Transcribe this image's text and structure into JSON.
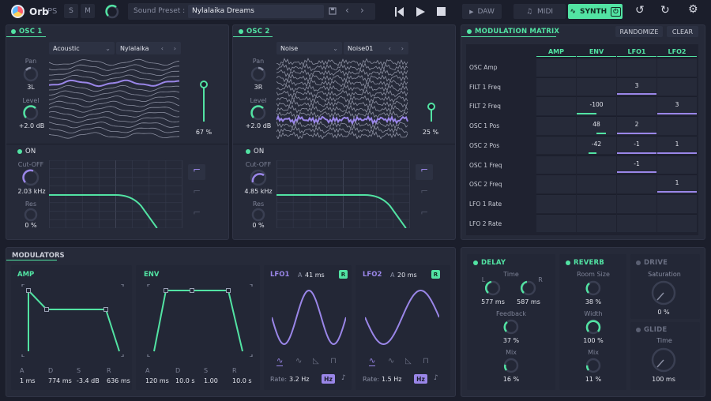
{
  "app": {
    "name": "Orb",
    "suffix": "PS",
    "s_label": "S",
    "m_label": "M",
    "preset_label": "Sound Preset :",
    "preset_name": "Nylalaika Dreams",
    "daw": "DAW",
    "midi": "MIDI",
    "synth": "SYNTH"
  },
  "osc1": {
    "title": "OSC 1",
    "pan_label": "Pan",
    "pan_value": "3L",
    "level_label": "Level",
    "level_value": "+2.0 dB",
    "type": "Acoustic",
    "wave": "Nylalaika",
    "volume": "67 %",
    "filter_on": "ON",
    "cutoff_label": "Cut-OFF",
    "cutoff_value": "2.03 kHz",
    "res_label": "Res",
    "res_value": "0 %"
  },
  "osc2": {
    "title": "OSC 2",
    "pan_label": "Pan",
    "pan_value": "3R",
    "level_label": "Level",
    "level_value": "+2.0 dB",
    "type": "Noise",
    "wave": "Noise01",
    "volume": "25 %",
    "filter_on": "ON",
    "cutoff_label": "Cut-OFF",
    "cutoff_value": "4.85 kHz",
    "res_label": "Res",
    "res_value": "0 %"
  },
  "matrix": {
    "title": "MODULATION MATRIX",
    "randomize": "RANDOMIZE",
    "clear": "CLEAR",
    "cols": [
      "AMP",
      "ENV",
      "LFO1",
      "LFO2"
    ],
    "rows": [
      {
        "name": "OSC Amp",
        "vals": [
          "",
          "",
          "",
          ""
        ]
      },
      {
        "name": "FILT 1 Freq",
        "vals": [
          "",
          "",
          "3",
          ""
        ]
      },
      {
        "name": "FILT 2 Freq",
        "vals": [
          "",
          "-100",
          "",
          "3"
        ]
      },
      {
        "name": "OSC 1 Pos",
        "vals": [
          "",
          "48",
          "2",
          ""
        ]
      },
      {
        "name": "OSC 2 Pos",
        "vals": [
          "",
          "-42",
          "-1",
          "1"
        ]
      },
      {
        "name": "OSC 1 Freq",
        "vals": [
          "",
          "",
          "-1",
          ""
        ]
      },
      {
        "name": "OSC 2 Freq",
        "vals": [
          "",
          "",
          "",
          "1"
        ]
      },
      {
        "name": "LFO 1 Rate",
        "vals": [
          "",
          "",
          "",
          ""
        ]
      },
      {
        "name": "LFO 2 Rate",
        "vals": [
          "",
          "",
          "",
          ""
        ]
      }
    ]
  },
  "modulators": {
    "title": "MODULATORS",
    "amp": {
      "title": "AMP",
      "labels": [
        "A",
        "D",
        "S",
        "R"
      ],
      "values": [
        "1 ms",
        "774 ms",
        "-3.4 dB",
        "636 ms"
      ]
    },
    "env": {
      "title": "ENV",
      "labels": [
        "A",
        "D",
        "S",
        "R"
      ],
      "values": [
        "120 ms",
        "10.0 s",
        "1.00",
        "10.0 s"
      ]
    },
    "lfo1": {
      "title": "LFO1",
      "a_label": "A",
      "a_value": "41 ms",
      "r": "R",
      "rate_label": "Rate:",
      "rate_value": "3.2 Hz",
      "hz": "Hz"
    },
    "lfo2": {
      "title": "LFO2",
      "a_label": "A",
      "a_value": "20 ms",
      "r": "R",
      "rate_label": "Rate:",
      "rate_value": "1.5 Hz",
      "hz": "Hz"
    }
  },
  "delay": {
    "title": "DELAY",
    "time_label": "Time",
    "l": "L",
    "r": "R",
    "time_l": "577 ms",
    "time_r": "587 ms",
    "feedback_label": "Feedback",
    "feedback_value": "37 %",
    "mix_label": "Mix",
    "mix_value": "16 %"
  },
  "reverb": {
    "title": "REVERB",
    "room_label": "Room Size",
    "room_value": "38 %",
    "width_label": "Width",
    "width_value": "100 %",
    "mix_label": "Mix",
    "mix_value": "11 %"
  },
  "drive": {
    "title": "DRIVE",
    "sat_label": "Saturation",
    "sat_value": "0 %"
  },
  "glide": {
    "title": "GLIDE",
    "time_label": "Time",
    "time_value": "100 ms"
  }
}
